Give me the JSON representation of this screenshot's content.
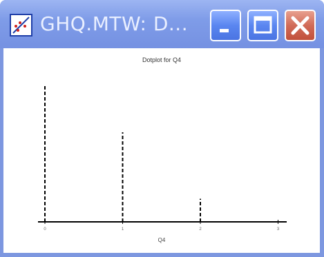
{
  "window": {
    "title": "GHQ.MTW: D...",
    "icon": "scatterplot-icon",
    "buttons": [
      "minimize-icon",
      "maximize-icon",
      "close-icon"
    ],
    "colors": {
      "titlebar": "#7f9ce8",
      "close": "#c1503b",
      "frame": "#7d97e0"
    }
  },
  "chart_data": {
    "type": "bar",
    "title": "Dotplot for Q4",
    "xlabel": "Q4",
    "ylabel": "",
    "style": "dashed vertical lines",
    "categories": [
      "0",
      "1",
      "2",
      "3"
    ],
    "values": [
      100,
      66,
      17,
      0
    ],
    "x_tick_labels": [
      "0",
      "1",
      "2",
      "3"
    ],
    "grid": false
  }
}
